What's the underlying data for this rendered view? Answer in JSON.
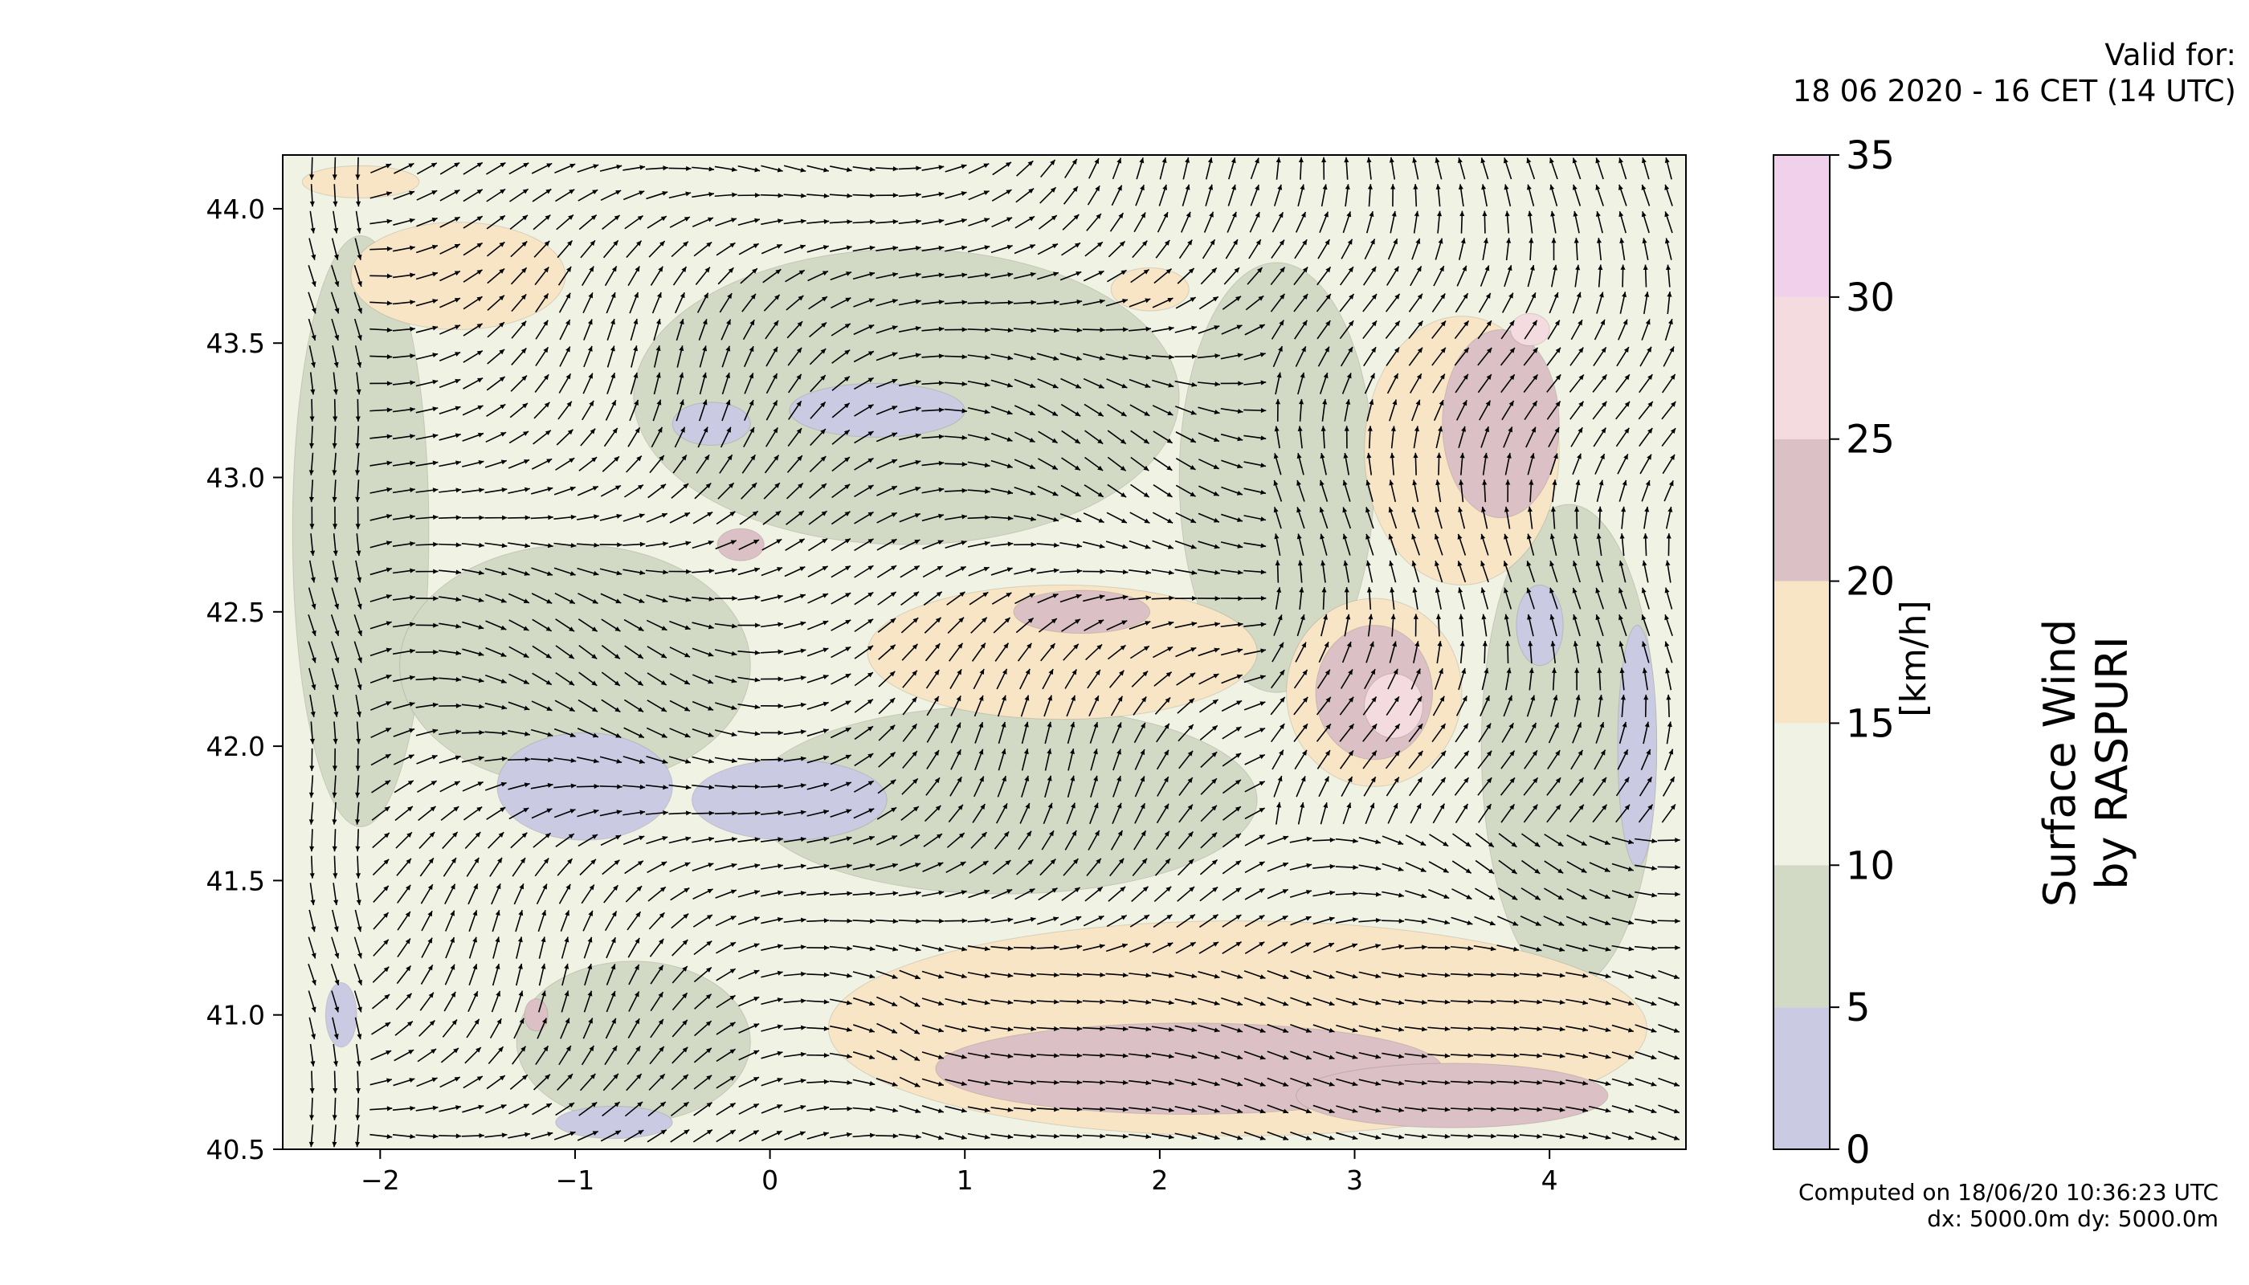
{
  "valid_for": {
    "line1": "Valid for:",
    "line2": "18 06 2020 - 16 CET (14 UTC)"
  },
  "footer": {
    "computed": "Computed on 18/06/20 10:36:23 UTC",
    "resolution": "dx: 5000.0m dy: 5000.0m"
  },
  "chart_data": {
    "type": "heatmap",
    "title": "",
    "xlabel": "",
    "ylabel": "",
    "xlim": [
      -2.5,
      4.7
    ],
    "ylim": [
      40.5,
      44.2
    ],
    "x_ticks": [
      -2,
      -1,
      0,
      1,
      2,
      3,
      4
    ],
    "x_tick_labels": [
      "−2",
      "−1",
      "0",
      "1",
      "2",
      "3",
      "4"
    ],
    "y_ticks": [
      40.5,
      41.0,
      41.5,
      42.0,
      42.5,
      43.0,
      43.5,
      44.0
    ],
    "y_tick_labels": [
      "40.5",
      "41.0",
      "41.5",
      "42.0",
      "42.5",
      "43.0",
      "43.5",
      "44.0"
    ],
    "colorbar": {
      "label": "[km/h]",
      "ticks": [
        0,
        5,
        10,
        15,
        20,
        25,
        30,
        35
      ],
      "tick_labels": [
        "0",
        "5",
        "10",
        "15",
        "20",
        "25",
        "30",
        "35"
      ],
      "levels": [
        {
          "from": 0,
          "to": 5,
          "color": "#cacbe3"
        },
        {
          "from": 5,
          "to": 10,
          "color": "#d2d9c4"
        },
        {
          "from": 10,
          "to": 15,
          "color": "#f0f2e3"
        },
        {
          "from": 15,
          "to": 20,
          "color": "#f7e5c6"
        },
        {
          "from": 20,
          "to": 25,
          "color": "#dbc0c5"
        },
        {
          "from": 25,
          "to": 30,
          "color": "#f4dbe0"
        },
        {
          "from": 30,
          "to": 35,
          "color": "#f0d0ea"
        }
      ]
    },
    "side_title": [
      "Surface Wind",
      "by RASPURI"
    ],
    "regions": [
      {
        "level": 1,
        "cx": -2.1,
        "cy": 42.8,
        "rx": 0.35,
        "ry": 1.1
      },
      {
        "level": 1,
        "cx": -1.0,
        "cy": 42.3,
        "rx": 0.9,
        "ry": 0.45
      },
      {
        "level": 1,
        "cx": 0.7,
        "cy": 43.3,
        "rx": 1.4,
        "ry": 0.55
      },
      {
        "level": 1,
        "cx": 1.2,
        "cy": 41.8,
        "rx": 1.3,
        "ry": 0.35
      },
      {
        "level": 1,
        "cx": 2.6,
        "cy": 43.0,
        "rx": 0.5,
        "ry": 0.8
      },
      {
        "level": 1,
        "cx": 4.1,
        "cy": 42.0,
        "rx": 0.45,
        "ry": 0.9
      },
      {
        "level": 1,
        "cx": -0.7,
        "cy": 40.9,
        "rx": 0.6,
        "ry": 0.3
      },
      {
        "level": 0,
        "cx": -0.95,
        "cy": 41.85,
        "rx": 0.45,
        "ry": 0.2
      },
      {
        "level": 0,
        "cx": 0.1,
        "cy": 41.8,
        "rx": 0.5,
        "ry": 0.15
      },
      {
        "level": 0,
        "cx": 0.55,
        "cy": 43.25,
        "rx": 0.45,
        "ry": 0.1
      },
      {
        "level": 0,
        "cx": -0.3,
        "cy": 43.2,
        "rx": 0.2,
        "ry": 0.08
      },
      {
        "level": 0,
        "cx": 4.45,
        "cy": 42.0,
        "rx": 0.1,
        "ry": 0.45
      },
      {
        "level": 0,
        "cx": 3.95,
        "cy": 42.45,
        "rx": 0.12,
        "ry": 0.15
      },
      {
        "level": 0,
        "cx": -2.2,
        "cy": 41.0,
        "rx": 0.08,
        "ry": 0.12
      },
      {
        "level": 0,
        "cx": -0.8,
        "cy": 40.6,
        "rx": 0.3,
        "ry": 0.06
      },
      {
        "level": 3,
        "cx": -1.6,
        "cy": 43.75,
        "rx": 0.55,
        "ry": 0.2
      },
      {
        "level": 3,
        "cx": -2.1,
        "cy": 44.1,
        "rx": 0.3,
        "ry": 0.06
      },
      {
        "level": 3,
        "cx": 3.55,
        "cy": 43.1,
        "rx": 0.5,
        "ry": 0.5
      },
      {
        "level": 3,
        "cx": 3.1,
        "cy": 42.2,
        "rx": 0.45,
        "ry": 0.35
      },
      {
        "level": 3,
        "cx": 1.5,
        "cy": 42.35,
        "rx": 1.0,
        "ry": 0.25
      },
      {
        "level": 3,
        "cx": 2.4,
        "cy": 40.95,
        "rx": 2.1,
        "ry": 0.4
      },
      {
        "level": 3,
        "cx": 1.95,
        "cy": 43.7,
        "rx": 0.2,
        "ry": 0.08
      },
      {
        "level": 4,
        "cx": 3.75,
        "cy": 43.2,
        "rx": 0.3,
        "ry": 0.35
      },
      {
        "level": 4,
        "cx": 3.1,
        "cy": 42.2,
        "rx": 0.3,
        "ry": 0.25
      },
      {
        "level": 4,
        "cx": 2.15,
        "cy": 40.8,
        "rx": 1.3,
        "ry": 0.17
      },
      {
        "level": 4,
        "cx": 3.5,
        "cy": 40.7,
        "rx": 0.8,
        "ry": 0.12
      },
      {
        "level": 4,
        "cx": 1.6,
        "cy": 42.5,
        "rx": 0.35,
        "ry": 0.08
      },
      {
        "level": 4,
        "cx": -0.15,
        "cy": 42.75,
        "rx": 0.12,
        "ry": 0.06
      },
      {
        "level": 4,
        "cx": -1.2,
        "cy": 41.0,
        "rx": 0.06,
        "ry": 0.06
      },
      {
        "level": 5,
        "cx": 3.2,
        "cy": 42.15,
        "rx": 0.15,
        "ry": 0.12
      },
      {
        "level": 5,
        "cx": 3.9,
        "cy": 43.55,
        "rx": 0.1,
        "ry": 0.06
      }
    ],
    "wind_vector_grid": {
      "x_start": -2.35,
      "x_step": 0.118,
      "y_start": 40.55,
      "y_step": 0.1,
      "spacing_unit": "degrees"
    }
  }
}
